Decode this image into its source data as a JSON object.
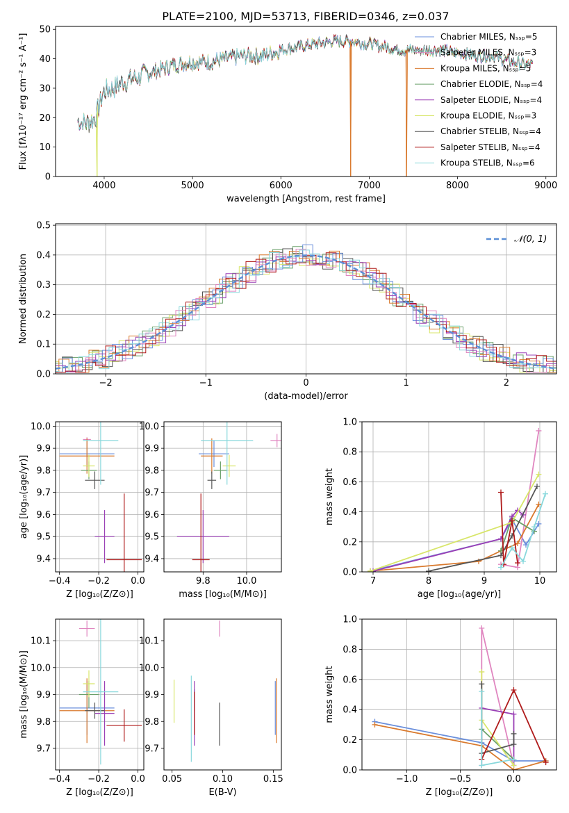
{
  "figure": {
    "suptitle": "PLATE=2100, MJD=53713, FIBERID=0346, z=0.037"
  },
  "palette": [
    "#6a8fdc",
    "#e086c0",
    "#d97a2e",
    "#6aa06a",
    "#9a3fb5",
    "#d8e66a",
    "#555555",
    "#b01c1c",
    "#88d8dc"
  ],
  "chart_data": [
    {
      "id": "spectrum",
      "type": "line",
      "xlabel": "wavelength [Angstrom, rest frame]",
      "ylabel": "Flux [fλ10⁻¹⁷ erg cm⁻² s⁻¹ A⁻¹]",
      "xlim": [
        3450,
        9120
      ],
      "ylim": [
        0,
        51
      ],
      "xticks": [
        4000,
        5000,
        6000,
        7000,
        8000,
        9000
      ],
      "yticks": [
        0,
        10,
        20,
        30,
        40,
        50
      ],
      "grid": false,
      "legend": "top-right",
      "continuum": {
        "x": [
          3700,
          3800,
          3900,
          4000,
          4100,
          4200,
          4400,
          4600,
          4800,
          5000,
          5200,
          5400,
          5600,
          5800,
          6000,
          6200,
          6400,
          6600,
          6800,
          7000,
          7200,
          7400,
          7600,
          7800,
          8000,
          8200,
          8400,
          8600,
          8800
        ],
        "y": [
          19,
          18,
          20,
          29,
          30,
          32,
          34,
          36,
          38,
          39,
          39,
          40,
          41,
          41,
          43,
          44,
          45,
          46,
          46,
          45,
          44,
          43,
          43,
          43,
          42,
          41,
          41,
          39,
          38
        ]
      },
      "x_range": [
        3700,
        8850
      ],
      "series": [
        {
          "name": "Chabrier MILES, Nₛₛₚ=5"
        },
        {
          "name": "Salpeter MILES, Nₛₛₚ=3"
        },
        {
          "name": "Kroupa MILES, Nₛₛₚ=5"
        },
        {
          "name": "Chabrier ELODIE, Nₛₛₚ=4"
        },
        {
          "name": "Salpeter ELODIE, Nₛₛₚ=4"
        },
        {
          "name": "Kroupa ELODIE, Nₛₛₚ=3"
        },
        {
          "name": "Chabrier STELIB, Nₛₛₚ=4"
        },
        {
          "name": "Salpeter STELIB, Nₛₛₚ=4"
        },
        {
          "name": "Kroupa STELIB, Nₛₛₚ=6"
        }
      ],
      "drops": [
        {
          "x": 3920,
          "y": 0,
          "series": 5
        },
        {
          "x": 6790,
          "y": 0,
          "series": 2
        },
        {
          "x": 7420,
          "y": 0,
          "series": 2
        }
      ]
    },
    {
      "id": "residuals",
      "type": "line",
      "xlabel": "(data-model)/error",
      "ylabel": "Normed distribution",
      "xlim": [
        -2.5,
        2.5
      ],
      "ylim": [
        0,
        0.505
      ],
      "xticks": [
        -2,
        -1,
        0,
        1,
        2
      ],
      "yticks": [
        0,
        0.1,
        0.2,
        0.3,
        0.4,
        0.5
      ],
      "grid": true,
      "legend": "top-right",
      "reference": {
        "name": "𝒩(0, 1)",
        "mean": 0,
        "sigma": 1
      },
      "hist_bin_width": 0.1
    },
    {
      "id": "age-vs-Z",
      "type": "scatter",
      "xlabel": "Z [log₁₀(Z/Z⊙)]",
      "ylabel": "age  [log₁₀(age/yr)]",
      "xlim": [
        -0.42,
        0.03
      ],
      "ylim": [
        9.34,
        10.02
      ],
      "xticks": [
        -0.4,
        -0.2,
        0.0
      ],
      "yticks": [
        9.4,
        9.5,
        9.6,
        9.7,
        9.8,
        9.9,
        10.0
      ],
      "grid": true,
      "points": [
        {
          "series": 0,
          "x": -0.26,
          "y": 9.875,
          "xerr": 0.14,
          "yerr": 0.06
        },
        {
          "series": 1,
          "x": -0.26,
          "y": 9.94,
          "xerr": 0.02,
          "yerr": 0.01
        },
        {
          "series": 2,
          "x": -0.26,
          "y": 9.865,
          "xerr": 0.14,
          "yerr": 0.08
        },
        {
          "series": 3,
          "x": -0.25,
          "y": 9.8,
          "xerr": 0.04,
          "yerr": 0.04
        },
        {
          "series": 4,
          "x": -0.17,
          "y": 9.5,
          "xerr": 0.05,
          "yerr": 0.12
        },
        {
          "series": 5,
          "x": -0.25,
          "y": 9.82,
          "xerr": 0.03,
          "yerr": 0.05
        },
        {
          "series": 6,
          "x": -0.22,
          "y": 9.755,
          "xerr": 0.05,
          "yerr": 0.04
        },
        {
          "series": 7,
          "x": -0.07,
          "y": 9.395,
          "xerr": 0.09,
          "yerr": 0.3
        },
        {
          "series": 8,
          "x": -0.19,
          "y": 9.935,
          "xerr": 0.09,
          "yerr": 0.2
        }
      ]
    },
    {
      "id": "age-vs-mass",
      "type": "scatter",
      "xlabel": "mass [log₁₀(M/M⊙)]",
      "ylabel": "",
      "xlim": [
        9.62,
        10.16
      ],
      "ylim": [
        9.34,
        10.02
      ],
      "xticks": [
        9.8,
        10.0
      ],
      "yticks": [
        9.4,
        9.5,
        9.6,
        9.7,
        9.8,
        9.9,
        10.0
      ],
      "grid": true,
      "points": [
        {
          "series": 0,
          "x": 9.85,
          "y": 9.875,
          "xerr": 0.07,
          "yerr": 0.06
        },
        {
          "series": 1,
          "x": 10.14,
          "y": 9.935,
          "xerr": 0.03,
          "yerr": 0.03
        },
        {
          "series": 2,
          "x": 9.84,
          "y": 9.865,
          "xerr": 0.05,
          "yerr": 0.08
        },
        {
          "series": 3,
          "x": 9.88,
          "y": 9.8,
          "xerr": 0.03,
          "yerr": 0.04
        },
        {
          "series": 4,
          "x": 9.8,
          "y": 9.5,
          "xerr": 0.12,
          "yerr": 0.12
        },
        {
          "series": 5,
          "x": 9.92,
          "y": 9.82,
          "xerr": 0.03,
          "yerr": 0.05
        },
        {
          "series": 6,
          "x": 9.84,
          "y": 9.755,
          "xerr": 0.02,
          "yerr": 0.04
        },
        {
          "series": 7,
          "x": 9.79,
          "y": 9.395,
          "xerr": 0.04,
          "yerr": 0.3
        },
        {
          "series": 8,
          "x": 9.91,
          "y": 9.935,
          "xerr": 0.12,
          "yerr": 0.2
        }
      ]
    },
    {
      "id": "weight-vs-age",
      "type": "line",
      "xlabel": "age  [log₁₀(age/yr)]",
      "ylabel": "mass weight",
      "xlim": [
        6.8,
        10.3
      ],
      "ylim": [
        0,
        1.0
      ],
      "xticks": [
        7,
        8,
        9,
        10
      ],
      "yticks": [
        0,
        0.2,
        0.4,
        0.6,
        0.8,
        1.0
      ],
      "grid": true,
      "series": [
        {
          "series": 0,
          "x": [
            6.95,
            9.3,
            9.5,
            9.75,
            9.98
          ],
          "y": [
            0.005,
            0.22,
            0.35,
            0.18,
            0.32
          ]
        },
        {
          "series": 1,
          "x": [
            9.3,
            9.6,
            9.98
          ],
          "y": [
            0.05,
            0.03,
            0.94
          ]
        },
        {
          "series": 2,
          "x": [
            6.95,
            8.9,
            9.3,
            9.6,
            9.98
          ],
          "y": [
            0.005,
            0.07,
            0.14,
            0.19,
            0.45
          ]
        },
        {
          "series": 3,
          "x": [
            9.3,
            9.5,
            9.9
          ],
          "y": [
            0.14,
            0.36,
            0.27
          ]
        },
        {
          "series": 4,
          "x": [
            7.0,
            9.3,
            9.5,
            9.6,
            9.7
          ],
          "y": [
            0.005,
            0.22,
            0.37,
            0.41,
            0.38
          ]
        },
        {
          "series": 5,
          "x": [
            6.95,
            9.5,
            9.98
          ],
          "y": [
            0.005,
            0.33,
            0.65
          ]
        },
        {
          "series": 6,
          "x": [
            8.0,
            9.3,
            9.5,
            9.95
          ],
          "y": [
            0.005,
            0.11,
            0.24,
            0.57
          ]
        },
        {
          "series": 7,
          "x": [
            9.3,
            9.35,
            9.5,
            9.6
          ],
          "y": [
            0.53,
            0.05,
            0.34,
            0.06
          ]
        },
        {
          "series": 8,
          "x": [
            9.3,
            9.5,
            9.7,
            9.9,
            10.1
          ],
          "y": [
            0.03,
            0.16,
            0.07,
            0.3,
            0.52
          ]
        }
      ]
    },
    {
      "id": "mass-vs-Z",
      "type": "scatter",
      "xlabel": "Z [log₁₀(Z/Z⊙)]",
      "ylabel": "mass [log₁₀(M/M⊙)]",
      "xlim": [
        -0.42,
        0.03
      ],
      "ylim": [
        9.62,
        10.18
      ],
      "xticks": [
        -0.4,
        -0.2,
        0.0
      ],
      "yticks": [
        9.7,
        9.8,
        9.9,
        10.0,
        10.1
      ],
      "grid": true,
      "points": [
        {
          "series": 0,
          "x": -0.26,
          "y": 9.85,
          "xerr": 0.14,
          "yerr": 0.1
        },
        {
          "series": 1,
          "x": -0.26,
          "y": 10.145,
          "xerr": 0.04,
          "yerr": 0.03
        },
        {
          "series": 2,
          "x": -0.26,
          "y": 9.84,
          "xerr": 0.14,
          "yerr": 0.12
        },
        {
          "series": 3,
          "x": -0.25,
          "y": 9.9,
          "xerr": 0.05,
          "yerr": 0.05
        },
        {
          "series": 4,
          "x": -0.17,
          "y": 9.83,
          "xerr": 0.05,
          "yerr": 0.12
        },
        {
          "series": 5,
          "x": -0.25,
          "y": 9.94,
          "xerr": 0.03,
          "yerr": 0.05
        },
        {
          "series": 6,
          "x": -0.22,
          "y": 9.84,
          "xerr": 0.05,
          "yerr": 0.03
        },
        {
          "series": 7,
          "x": -0.07,
          "y": 9.785,
          "xerr": 0.09,
          "yerr": 0.06
        },
        {
          "series": 8,
          "x": -0.19,
          "y": 9.91,
          "xerr": 0.09,
          "yerr": 0.27
        }
      ]
    },
    {
      "id": "mass-vs-ebv",
      "type": "scatter",
      "xlabel": "E(B-V)",
      "ylabel": "",
      "xlim": [
        0.042,
        0.158
      ],
      "ylim": [
        9.62,
        10.18
      ],
      "xticks": [
        0.05,
        0.1,
        0.15
      ],
      "yticks": [
        9.7,
        9.8,
        9.9,
        10.0,
        10.1
      ],
      "grid": false,
      "points": [
        {
          "series": 0,
          "x": 0.152,
          "y": 9.85,
          "xerr": 0.0,
          "yerr": 0.1
        },
        {
          "series": 1,
          "x": 0.097,
          "y": 10.145,
          "xerr": 0.0,
          "yerr": 0.03
        },
        {
          "series": 2,
          "x": 0.153,
          "y": 9.84,
          "xerr": 0.0,
          "yerr": 0.12
        },
        {
          "series": 3,
          "x": 0.072,
          "y": 9.88,
          "xerr": 0.0,
          "yerr": 0.04
        },
        {
          "series": 4,
          "x": 0.072,
          "y": 9.83,
          "xerr": 0.0,
          "yerr": 0.12
        },
        {
          "series": 5,
          "x": 0.052,
          "y": 9.875,
          "xerr": 0.0,
          "yerr": 0.08
        },
        {
          "series": 6,
          "x": 0.097,
          "y": 9.79,
          "xerr": 0.0,
          "yerr": 0.08
        },
        {
          "series": 7,
          "x": 0.072,
          "y": 9.83,
          "xerr": 0.0,
          "yerr": 0.08
        },
        {
          "series": 8,
          "x": 0.069,
          "y": 9.81,
          "xerr": 0.0,
          "yerr": 0.16
        }
      ]
    },
    {
      "id": "weight-vs-Z",
      "type": "line",
      "xlabel": "Z [log₁₀(Z/Z⊙)]",
      "ylabel": "mass weight",
      "xlim": [
        -1.42,
        0.4
      ],
      "ylim": [
        0,
        1.0
      ],
      "xticks": [
        -1.0,
        -0.5,
        0.0
      ],
      "yticks": [
        0,
        0.2,
        0.4,
        0.6,
        0.8,
        1.0
      ],
      "grid": true,
      "series": [
        {
          "series": 0,
          "x": [
            -1.3,
            -0.3,
            0.0,
            0.3
          ],
          "y": [
            0.32,
            0.18,
            0.06,
            0.06
          ]
        },
        {
          "series": 1,
          "x": [
            -0.3,
            -0.3,
            0.0
          ],
          "y": [
            0.03,
            0.94,
            0.03
          ]
        },
        {
          "series": 2,
          "x": [
            -1.3,
            -0.3,
            0.0,
            0.3
          ],
          "y": [
            0.3,
            0.16,
            0.0,
            0.06
          ]
        },
        {
          "series": 3,
          "x": [
            -0.3,
            0.0
          ],
          "y": [
            0.27,
            0.07
          ]
        },
        {
          "series": 4,
          "x": [
            -0.3,
            0.0,
            0.0
          ],
          "y": [
            0.41,
            0.37,
            0.03
          ]
        },
        {
          "series": 5,
          "x": [
            -0.3,
            -0.3,
            0.0
          ],
          "y": [
            0.65,
            0.33,
            0.03
          ]
        },
        {
          "series": 6,
          "x": [
            -0.3,
            -0.3,
            0.0,
            0.0
          ],
          "y": [
            0.57,
            0.11,
            0.17,
            0.24
          ]
        },
        {
          "series": 7,
          "x": [
            -0.3,
            0.0,
            0.3
          ],
          "y": [
            0.07,
            0.53,
            0.05
          ]
        },
        {
          "series": 8,
          "x": [
            -0.3,
            -0.3,
            0.0
          ],
          "y": [
            0.52,
            0.03,
            0.07
          ]
        }
      ]
    }
  ]
}
